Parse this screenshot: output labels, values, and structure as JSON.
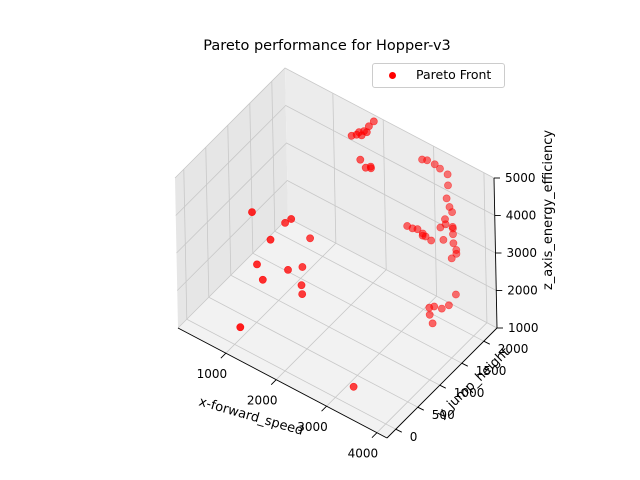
{
  "chart_data": {
    "type": "scatter",
    "title": "Pareto performance for Hopper-v3",
    "xlabel": "x-forward_speed",
    "ylabel": "y_jump_height",
    "zlabel": "z_axis_energy_efficiency",
    "xticks": [
      "1000",
      "2000",
      "3000",
      "4000"
    ],
    "yticks": [
      "0",
      "500",
      "1000",
      "1500",
      "2000"
    ],
    "zticks": [
      "1000",
      "2000",
      "3000",
      "4000",
      "5000"
    ],
    "xlim": [
      50,
      4200
    ],
    "ylim": [
      -200,
      2300
    ],
    "zlim": [
      1000,
      5000
    ],
    "grid": true,
    "legend": "top-right",
    "series": [
      {
        "name": "Pareto Front",
        "color": "#ff0000",
        "points": [
          [
            400,
            1200,
            1300
          ],
          [
            350,
            1900,
            1550
          ],
          [
            800,
            1950,
            1400
          ],
          [
            600,
            1100,
            1150
          ],
          [
            950,
            1600,
            1150
          ],
          [
            750,
            1500,
            1050
          ],
          [
            1250,
            1250,
            1050
          ],
          [
            1150,
            1350,
            1100
          ],
          [
            850,
            300,
            1000
          ],
          [
            500,
            1000,
            3000
          ],
          [
            1150,
            1150,
            3100
          ],
          [
            950,
            900,
            2700
          ],
          [
            1600,
            2200,
            4500
          ],
          [
            1700,
            2200,
            4600
          ],
          [
            1800,
            2200,
            4800
          ],
          [
            1900,
            2200,
            5000
          ],
          [
            1550,
            2200,
            4400
          ],
          [
            1450,
            2200,
            4300
          ],
          [
            1800,
            2150,
            4700
          ],
          [
            1650,
            2200,
            4450
          ],
          [
            1900,
            2000,
            4000
          ],
          [
            2000,
            2000,
            4100
          ],
          [
            2050,
            1950,
            4150
          ],
          [
            1750,
            2050,
            4050
          ],
          [
            3000,
            2150,
            4800
          ],
          [
            3150,
            2150,
            4800
          ],
          [
            3300,
            2100,
            4850
          ],
          [
            3450,
            2100,
            4800
          ],
          [
            3500,
            2050,
            4600
          ],
          [
            3600,
            1900,
            4500
          ],
          [
            3700,
            1850,
            4400
          ],
          [
            3750,
            1850,
            4300
          ],
          [
            3650,
            1800,
            4100
          ],
          [
            3800,
            1800,
            4000
          ],
          [
            3850,
            1750,
            3900
          ],
          [
            3900,
            1700,
            3750
          ],
          [
            4000,
            1650,
            3600
          ],
          [
            3700,
            1700,
            3700
          ],
          [
            3600,
            1750,
            3900
          ],
          [
            3750,
            1700,
            4150
          ],
          [
            2900,
            2150,
            4750
          ],
          [
            3850,
            1750,
            4050
          ],
          [
            3950,
            1600,
            3500
          ],
          [
            4000,
            1650,
            3700
          ],
          [
            2800,
            1900,
            3200
          ],
          [
            2950,
            1850,
            3300
          ],
          [
            3050,
            1850,
            3350
          ],
          [
            3200,
            1800,
            3400
          ],
          [
            3300,
            1750,
            3450
          ],
          [
            3500,
            1650,
            3600
          ],
          [
            3150,
            1850,
            3250
          ],
          [
            3750,
            1300,
            2400
          ],
          [
            3800,
            1250,
            2300
          ],
          [
            3850,
            1300,
            2500
          ],
          [
            4100,
            1350,
            2650
          ],
          [
            4000,
            1300,
            2550
          ],
          [
            3900,
            1200,
            2200
          ],
          [
            4200,
            1400,
            2950
          ],
          [
            3100,
            300,
            1000
          ]
        ]
      }
    ]
  }
}
